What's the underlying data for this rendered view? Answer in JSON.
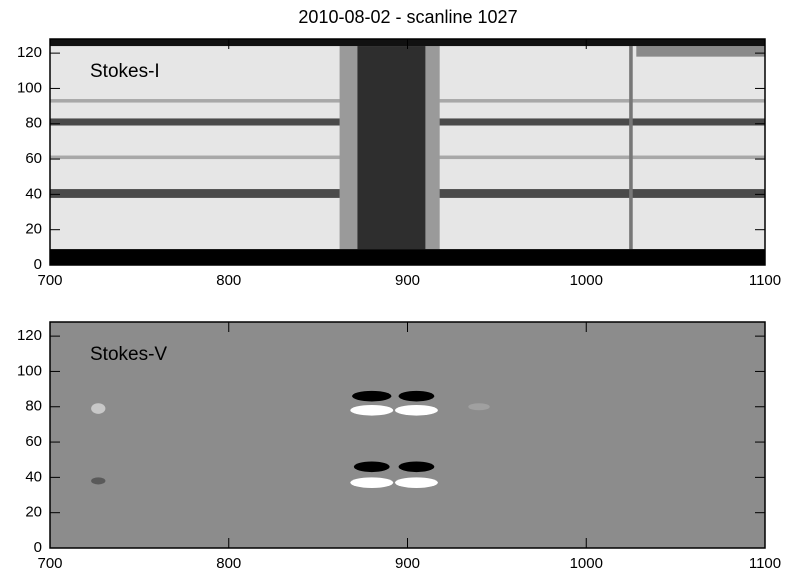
{
  "title": "2010-08-02  -  scanline 1027",
  "chart_data": [
    {
      "type": "image",
      "label": "Stokes-I",
      "background": "#e6e6e6",
      "xlim": [
        700,
        1100
      ],
      "ylim": [
        0,
        128
      ],
      "xticks": [
        700,
        800,
        900,
        1000,
        1100
      ],
      "yticks": [
        0,
        20,
        40,
        60,
        80,
        100,
        120
      ],
      "rects": [
        {
          "x0": 700,
          "x1": 1100,
          "y0": 38,
          "y1": 43,
          "color": "#4a4a4a"
        },
        {
          "x0": 700,
          "x1": 1100,
          "y0": 79,
          "y1": 83,
          "color": "#4a4a4a"
        },
        {
          "x0": 700,
          "x1": 1100,
          "y0": 60,
          "y1": 62,
          "color": "#a8a8a8"
        },
        {
          "x0": 700,
          "x1": 1100,
          "y0": 92,
          "y1": 94,
          "color": "#a8a8a8"
        },
        {
          "x0": 862,
          "x1": 918,
          "y0": 9,
          "y1": 124,
          "color": "#9a9a9a"
        },
        {
          "x0": 872,
          "x1": 910,
          "y0": 9,
          "y1": 124,
          "color": "#2e2e2e"
        },
        {
          "x0": 1024,
          "x1": 1026,
          "y0": 9,
          "y1": 124,
          "color": "#777777"
        },
        {
          "x0": 1028,
          "x1": 1100,
          "y0": 118,
          "y1": 124,
          "color": "#8a8a8a"
        },
        {
          "x0": 700,
          "x1": 1100,
          "y0": 0,
          "y1": 9,
          "color": "#000000"
        },
        {
          "x0": 700,
          "x1": 1100,
          "y0": 124,
          "y1": 128,
          "color": "#111111"
        }
      ]
    },
    {
      "type": "image",
      "label": "Stokes-V",
      "background": "#8c8c8c",
      "xlim": [
        700,
        1100
      ],
      "ylim": [
        0,
        128
      ],
      "xticks": [
        700,
        800,
        900,
        1000,
        1100
      ],
      "yticks": [
        0,
        20,
        40,
        60,
        80,
        100,
        120
      ],
      "ellipses": [
        {
          "x": 880,
          "y": 86,
          "rx": 11,
          "ry": 3,
          "color": "#000000"
        },
        {
          "x": 905,
          "y": 86,
          "rx": 10,
          "ry": 3,
          "color": "#000000"
        },
        {
          "x": 880,
          "y": 78,
          "rx": 12,
          "ry": 3,
          "color": "#ffffff"
        },
        {
          "x": 905,
          "y": 78,
          "rx": 12,
          "ry": 3,
          "color": "#ffffff"
        },
        {
          "x": 880,
          "y": 46,
          "rx": 10,
          "ry": 3,
          "color": "#000000"
        },
        {
          "x": 905,
          "y": 46,
          "rx": 10,
          "ry": 3,
          "color": "#000000"
        },
        {
          "x": 880,
          "y": 37,
          "rx": 12,
          "ry": 3,
          "color": "#ffffff"
        },
        {
          "x": 905,
          "y": 37,
          "rx": 12,
          "ry": 3,
          "color": "#ffffff"
        },
        {
          "x": 727,
          "y": 79,
          "rx": 4,
          "ry": 3,
          "color": "#c8c8c8"
        },
        {
          "x": 727,
          "y": 38,
          "rx": 4,
          "ry": 2,
          "color": "#5a5a5a"
        },
        {
          "x": 940,
          "y": 80,
          "rx": 6,
          "ry": 2,
          "color": "#a0a0a0"
        }
      ]
    }
  ]
}
